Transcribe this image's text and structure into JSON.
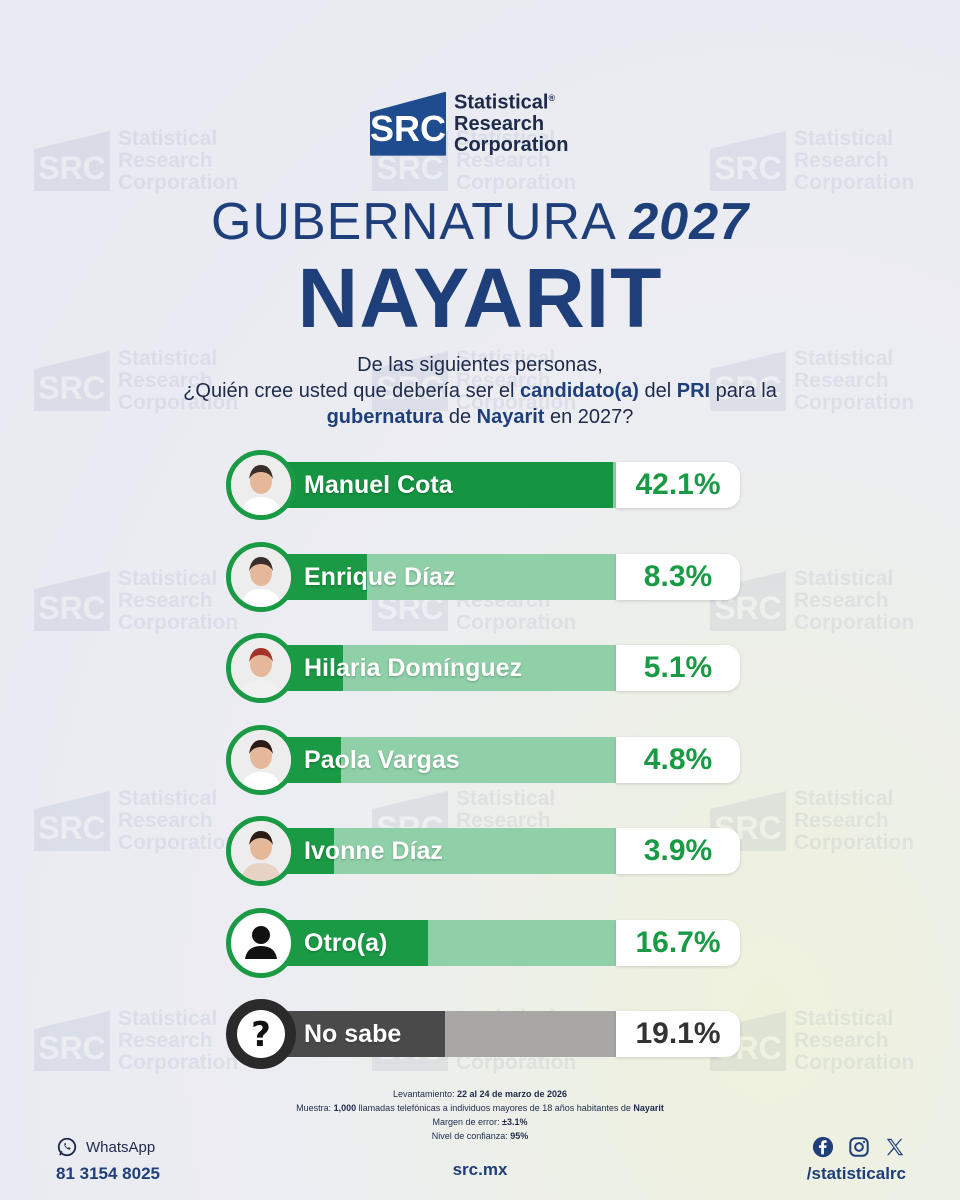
{
  "brand": {
    "logo_mark": "SRC",
    "logo_line1": "Statistical",
    "logo_reg": "®",
    "logo_line2": "Research",
    "logo_line3": "Corporation"
  },
  "header": {
    "title_light": "GUBERNATURA",
    "title_year": "2027",
    "state": "NAYARIT"
  },
  "question": {
    "line1": "De las siguientes personas,",
    "line2_a": "¿Quién cree usted que debería ser el ",
    "line2_b": "candidato(a)",
    "line2_c": " del ",
    "line2_d": "PRI",
    "line2_e": " para la",
    "line3_a": "gubernatura",
    "line3_b": " de ",
    "line3_c": "Nayarit",
    "line3_d": " en 2027?"
  },
  "chart_data": {
    "type": "bar",
    "orientation": "horizontal",
    "title": "GUBERNATURA 2027 NAYARIT",
    "categories": [
      "Manuel Cota",
      "Enrique Díaz",
      "Hilaria Domínguez",
      "Paola Vargas",
      "Ivonne Díaz",
      "Otro(a)",
      "No sabe"
    ],
    "values": [
      42.1,
      8.3,
      5.1,
      4.8,
      3.9,
      16.7,
      19.1
    ],
    "labels": [
      "42.1%",
      "8.3%",
      "5.1%",
      "4.8%",
      "3.9%",
      "16.7%",
      "19.1%"
    ],
    "unit": "%",
    "xlim": [
      0,
      48
    ]
  },
  "colors": {
    "leader": "#159442",
    "normal": "#1a9a45",
    "track_light": "#8fd0a8",
    "gray": "#4a4a4a",
    "gray_track": "#a9a6a6",
    "navy": "#1f3f7a"
  },
  "methodology": {
    "lev_label": "Levantamiento: ",
    "lev_value": "22 al 24 de marzo de 2026",
    "muestra_label": "Muestra: ",
    "muestra_value": "1,000",
    "muestra_text": " llamadas telefónicas a individuos mayores de 18 años habitantes de ",
    "muestra_state": "Nayarit",
    "margen_label": "Margen de error: ",
    "margen_value": "±3.1%",
    "nivel_label": "Nivel de confianza: ",
    "nivel_value": "95%"
  },
  "footer": {
    "whatsapp_label": "WhatsApp",
    "whatsapp_number": "81 3154 8025",
    "website": "src.mx",
    "social_handle": "/statisticalrc",
    "icons": [
      "whatsapp-icon",
      "facebook-icon",
      "instagram-icon",
      "x-icon"
    ]
  }
}
